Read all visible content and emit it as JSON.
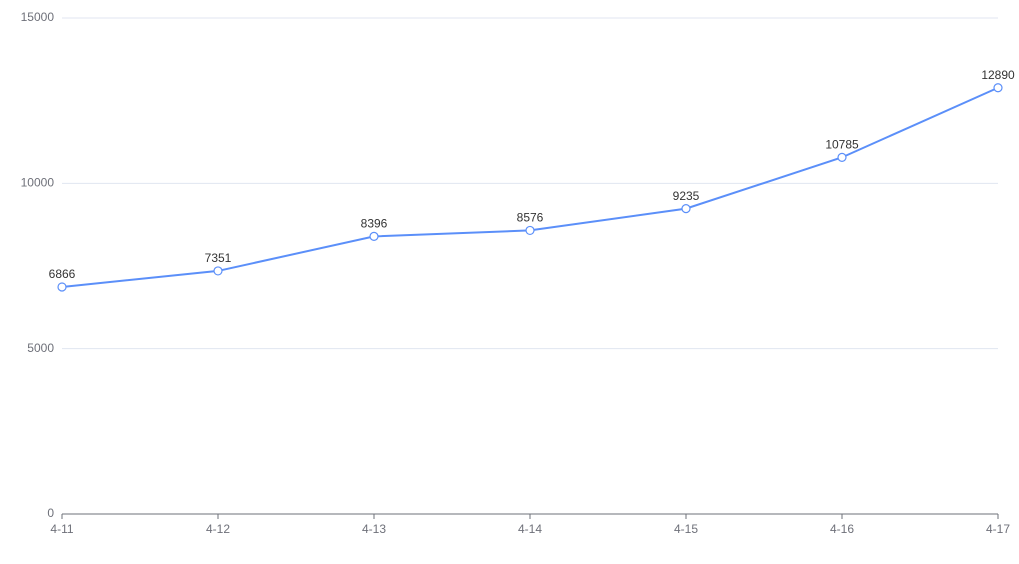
{
  "chart_data": {
    "type": "line",
    "categories": [
      "4-11",
      "4-12",
      "4-13",
      "4-14",
      "4-15",
      "4-16",
      "4-17"
    ],
    "series": [
      {
        "values": [
          6866,
          7351,
          8396,
          8576,
          9235,
          10785,
          12890
        ],
        "color": "#5b8ff9"
      }
    ],
    "ylim": [
      0,
      15000
    ],
    "yticks": [
      0,
      5000,
      10000,
      15000
    ],
    "grid": true
  }
}
